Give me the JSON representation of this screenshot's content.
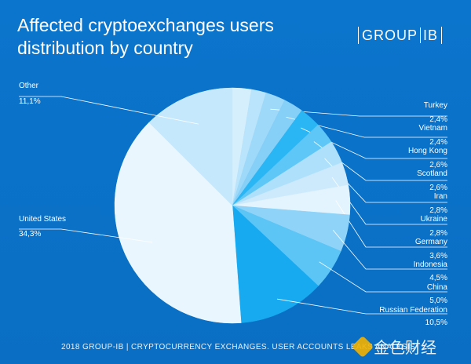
{
  "header": {
    "title_line1": "Affected cryptoexchanges users",
    "title_line2": "distribution by country"
  },
  "logo": {
    "left": "GROUP",
    "right": "IB"
  },
  "footer": {
    "text": "2018 GROUP-IB | CRYPTOCURRENCY EXCHANGES. USER ACCOUNTS LEAKS ANALYSIS"
  },
  "watermark": {
    "text": "金色财经",
    "icon": "jinse-logo-icon"
  },
  "chart_data": {
    "type": "pie",
    "title": "Affected cryptoexchanges users distribution by country",
    "unit": "%",
    "slices": [
      {
        "label": "",
        "value": 2.3,
        "value_label": "",
        "color": "#d6effd"
      },
      {
        "label": "",
        "value": 1.8,
        "value_label": "",
        "color": "#b9e4fb"
      },
      {
        "label": "Turkey",
        "value": 2.4,
        "value_label": "2,4%",
        "color": "#9ed9f9"
      },
      {
        "label": "Vietnam",
        "value": 2.4,
        "value_label": "2,4%",
        "color": "#86cff7"
      },
      {
        "label": "Hong Kong",
        "value": 2.6,
        "value_label": "2,6%",
        "color": "#2ab6f5"
      },
      {
        "label": "Scotland",
        "value": 2.6,
        "value_label": "2,6%",
        "color": "#5ec7f7"
      },
      {
        "label": "Iran",
        "value": 2.8,
        "value_label": "2,8%",
        "color": "#aee0fb"
      },
      {
        "label": "Ukraine",
        "value": 2.8,
        "value_label": "2,8%",
        "color": "#cdeafd"
      },
      {
        "label": "Germany",
        "value": 3.6,
        "value_label": "3,6%",
        "color": "#e3f4fe"
      },
      {
        "label": "Indonesia",
        "value": 4.5,
        "value_label": "4,5%",
        "color": "#8fd4f8"
      },
      {
        "label": "China",
        "value": 5.0,
        "value_label": "5,0%",
        "color": "#5cc5f6"
      },
      {
        "label": "Russian Federation",
        "value": 10.5,
        "value_label": "10,5%",
        "color": "#18aaf0"
      },
      {
        "label": "United States",
        "value": 34.3,
        "value_label": "34,3%",
        "color": "#eaf6fe"
      },
      {
        "label": "Other",
        "value": 11.1,
        "value_label": "11,1%",
        "color": "#c6e8fc"
      }
    ],
    "legend": "none",
    "labels": "leader lines"
  }
}
